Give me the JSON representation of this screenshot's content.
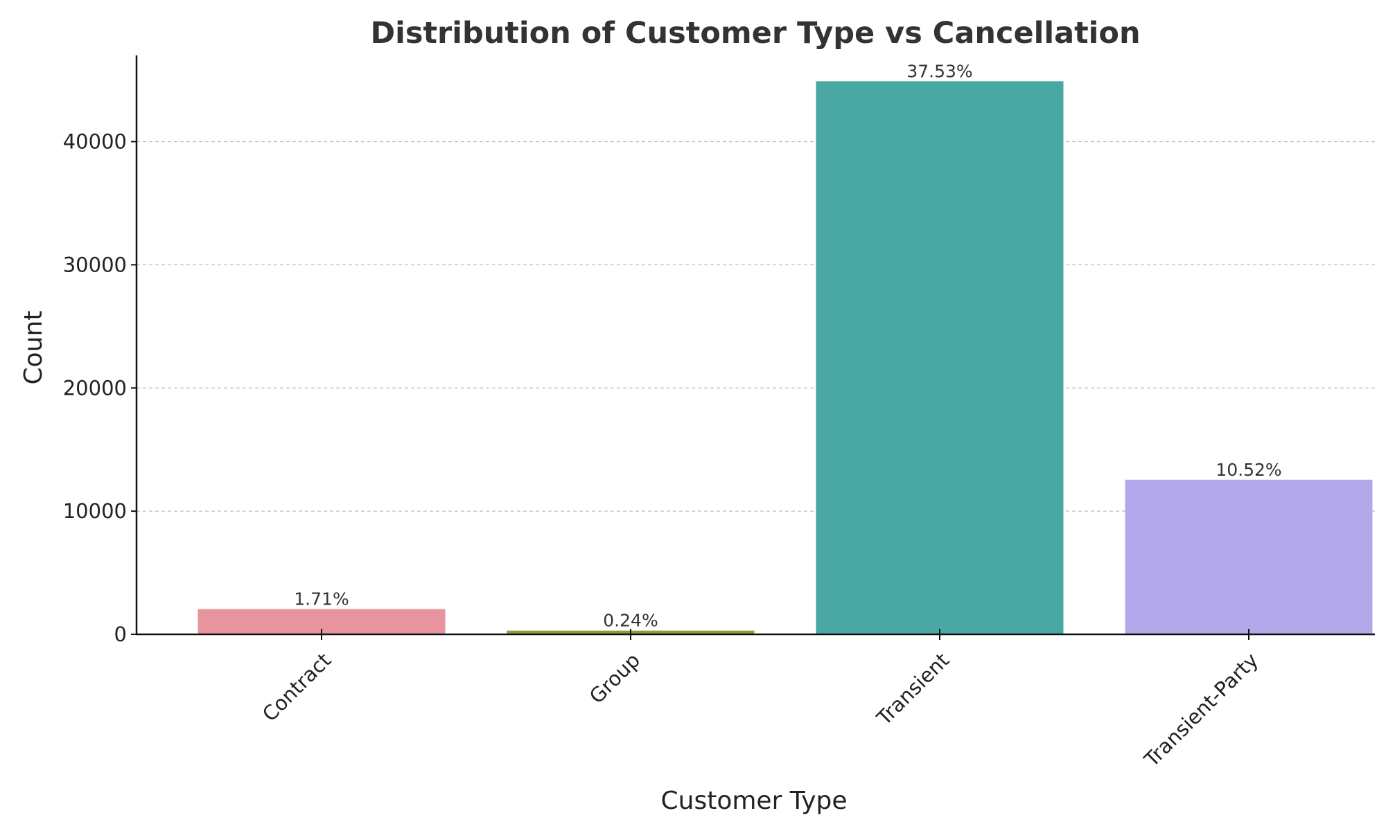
{
  "chart_data": {
    "type": "bar",
    "title": "Distribution of Customer Type vs Cancellation",
    "xlabel": "Customer Type",
    "ylabel": "Count",
    "categories": [
      "Contract",
      "Group",
      "Transient",
      "Transient-Party"
    ],
    "values": [
      2050,
      300,
      44900,
      12550
    ],
    "data_labels": [
      "1.71%",
      "0.24%",
      "37.53%",
      "10.52%"
    ],
    "colors": [
      "#e8949e",
      "#8f9a3c",
      "#4aa8a4",
      "#b3a8ea"
    ],
    "ylim": [
      0,
      47000
    ],
    "yticks": [
      0,
      10000,
      20000,
      30000,
      40000
    ],
    "ytick_labels": [
      "0",
      "10000",
      "20000",
      "30000",
      "40000"
    ],
    "grid": "y-dashed",
    "legend": "none"
  }
}
